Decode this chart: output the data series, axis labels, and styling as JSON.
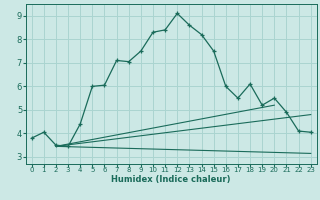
{
  "xlabel": "Humidex (Indice chaleur)",
  "bg_color": "#cce8e5",
  "line_color": "#1a6b5a",
  "grid_color": "#aad4d0",
  "xlim": [
    -0.5,
    23.5
  ],
  "ylim": [
    2.7,
    9.5
  ],
  "xticks": [
    0,
    1,
    2,
    3,
    4,
    5,
    6,
    7,
    8,
    9,
    10,
    11,
    12,
    13,
    14,
    15,
    16,
    17,
    18,
    19,
    20,
    21,
    22,
    23
  ],
  "yticks": [
    3,
    4,
    5,
    6,
    7,
    8,
    9
  ],
  "main_x": [
    0,
    1,
    2,
    3,
    4,
    5,
    6,
    7,
    8,
    9,
    10,
    11,
    12,
    13,
    14,
    15,
    16,
    17,
    18,
    19,
    20,
    21,
    22,
    23
  ],
  "main_y": [
    3.8,
    4.05,
    3.5,
    3.45,
    4.4,
    6.0,
    6.05,
    7.1,
    7.05,
    7.5,
    8.3,
    8.4,
    9.1,
    8.6,
    8.2,
    7.5,
    6.0,
    5.5,
    6.1,
    5.2,
    5.5,
    4.9,
    4.1,
    4.05
  ],
  "line2_x": [
    2,
    20
  ],
  "line2_y": [
    3.45,
    5.2
  ],
  "line3_x": [
    2,
    23
  ],
  "line3_y": [
    3.45,
    4.8
  ],
  "line4_x": [
    2,
    23
  ],
  "line4_y": [
    3.45,
    3.15
  ]
}
